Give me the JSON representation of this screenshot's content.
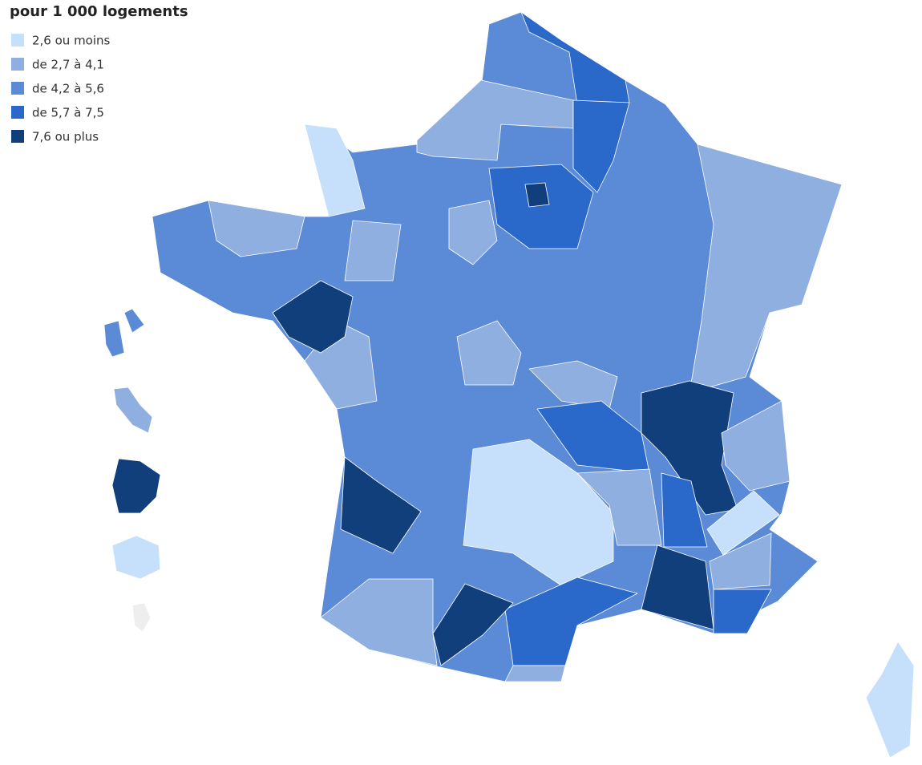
{
  "title": "pour 1 000 logements",
  "legend": [
    {
      "label": "2,6 ou moins",
      "color": "#c6e0fb"
    },
    {
      "label": "de 2,7 à 4,1",
      "color": "#8fafe0"
    },
    {
      "label": "de 4,2 à 5,6",
      "color": "#5b8ad6"
    },
    {
      "label": "de 5,7 à 7,5",
      "color": "#2a69c9"
    },
    {
      "label": "7,6 ou plus",
      "color": "#113f7c"
    }
  ]
}
